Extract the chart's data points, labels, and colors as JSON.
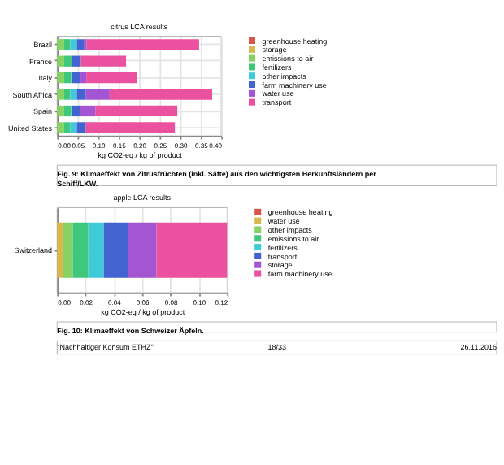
{
  "chart_data": [
    {
      "type": "bar",
      "orientation": "horizontal",
      "stacked": true,
      "title": "citrus LCA results",
      "xlabel": "kg CO2-eq / kg of product",
      "categories": [
        "Brazil",
        "France",
        "Italy",
        "South Africa",
        "Spain",
        "United States"
      ],
      "series": [
        {
          "name": "greenhouse heating",
          "color": "#d4574a",
          "values": [
            0,
            0,
            0,
            0,
            0,
            0
          ]
        },
        {
          "name": "storage",
          "color": "#d9b94f",
          "values": [
            0,
            0,
            0,
            0,
            0,
            0
          ]
        },
        {
          "name": "emissions to air",
          "color": "#86d262",
          "values": [
            0.017,
            0.017,
            0.017,
            0.017,
            0.017,
            0.017
          ]
        },
        {
          "name": "fertilizers",
          "color": "#3fc77c",
          "values": [
            0.015,
            0.02,
            0.017,
            0.015,
            0.017,
            0.015
          ]
        },
        {
          "name": "other impacts",
          "color": "#3ecad6",
          "values": [
            0.016,
            0,
            0.002,
            0.016,
            0.002,
            0.016
          ]
        },
        {
          "name": "farm machinery use",
          "color": "#4263d0",
          "values": [
            0.017,
            0.021,
            0.021,
            0.022,
            0.02,
            0.022
          ]
        },
        {
          "name": "water use",
          "color": "#a455d2",
          "values": [
            0.007,
            0,
            0.014,
            0.058,
            0.037,
            0
          ]
        },
        {
          "name": "transport",
          "color": "#ea519f",
          "values": [
            0.274,
            0.11,
            0.123,
            0.25,
            0.2,
            0.217
          ]
        }
      ],
      "xlim": [
        0,
        0.4
      ],
      "xticks": [
        {
          "value": 0,
          "label": "0.00"
        },
        0.05,
        {
          "value": 0.1,
          "label": "0.10"
        },
        0.15,
        {
          "value": 0.2,
          "label": "0.20"
        },
        0.25,
        {
          "value": 0.3,
          "label": "0.30"
        },
        0.35,
        {
          "value": 0.4,
          "label": "0.40"
        }
      ],
      "grid": true,
      "legend": "right",
      "annotations": [
        "Fig. 9: Klimaeffekt von Zitrusfrüchten (inkl. Säfte) aus den wichtigsten Herkunftsländern per Schiff/LKW."
      ]
    },
    {
      "type": "bar",
      "orientation": "horizontal",
      "stacked": true,
      "title": "apple LCA results",
      "xlabel": "kg CO2-eq / kg of product",
      "categories": [
        "Switzerland"
      ],
      "series": [
        {
          "name": "greenhouse heating",
          "color": "#d4574a",
          "values": [
            0
          ]
        },
        {
          "name": "water use",
          "color": "#d9b94f",
          "values": [
            0.004
          ]
        },
        {
          "name": "other impacts",
          "color": "#86d262",
          "values": [
            0.007
          ]
        },
        {
          "name": "emissions to air",
          "color": "#3fc77c",
          "values": [
            0.011
          ]
        },
        {
          "name": "fertilizers",
          "color": "#3ecad6",
          "values": [
            0.011
          ]
        },
        {
          "name": "transport",
          "color": "#4263d0",
          "values": [
            0.017
          ]
        },
        {
          "name": "storage",
          "color": "#a455d2",
          "values": [
            0.02
          ]
        },
        {
          "name": "farm machinery use",
          "color": "#ea519f",
          "values": [
            0.05
          ]
        }
      ],
      "xlim": [
        0,
        0.12
      ],
      "xticks": [
        {
          "value": 0,
          "label": "0.00"
        },
        0.02,
        0.04,
        0.06,
        0.08,
        {
          "value": 0.1,
          "label": "0.10"
        },
        0.12
      ],
      "grid": true,
      "legend": "right",
      "annotations": [
        "Fig. 10: Klimaeffekt von Schweizer Äpfeln.",
        "\"Nachhaltiger Konsum ETHZ\"",
        "18/33",
        "26.11.2016"
      ]
    }
  ]
}
